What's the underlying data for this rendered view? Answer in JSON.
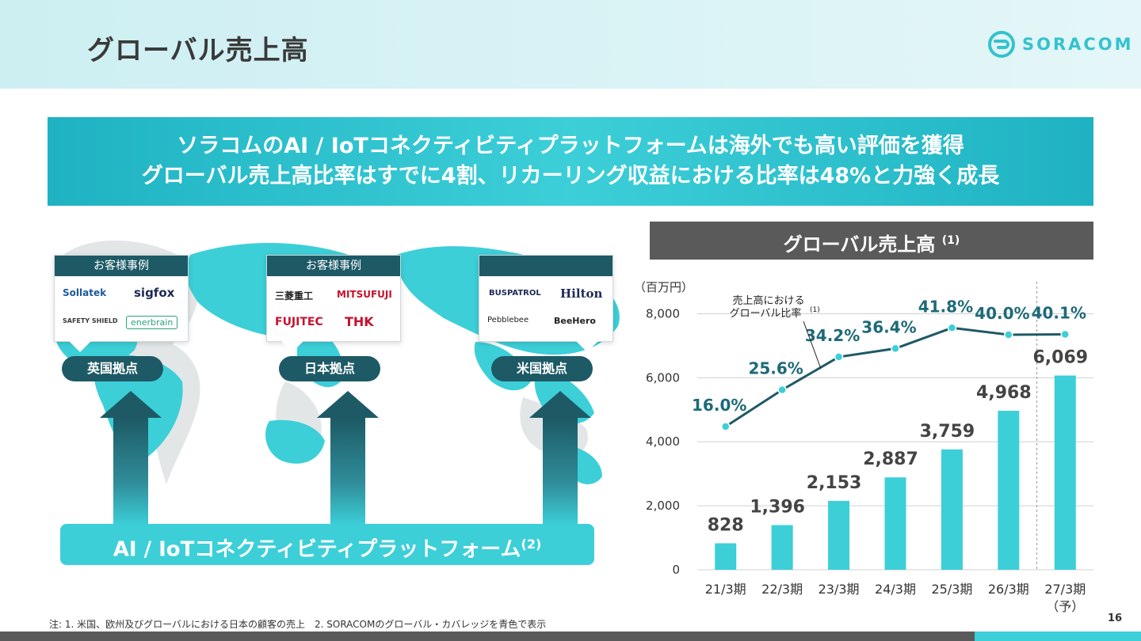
{
  "header": {
    "title": "グローバル売上高",
    "logo_text": "SORACOM"
  },
  "banner": {
    "line1": "ソラコムのAI / IoTコネクティビティプラットフォームは海外でも高い評価を獲得",
    "line2": "グローバル売上高比率はすでに4割、リカーリング収益における比率は48%と力強く成長"
  },
  "map": {
    "cases": [
      {
        "heading": "お客様事例",
        "brands": [
          "Sollatek",
          "sigfox",
          "SAFETY SHIELD",
          "enerbrain"
        ]
      },
      {
        "heading": "お客様事例",
        "brands": [
          "三菱重工",
          "MITSUFUJI",
          "FUJITEC",
          "THK"
        ]
      },
      {
        "heading": "",
        "brands": [
          "BUSPATROL",
          "Hilton",
          "Pebblebee",
          "BeeHero"
        ]
      }
    ],
    "bases": [
      "英国拠点",
      "日本拠点",
      "米国拠点"
    ],
    "platform_label": "AI / IoTコネクティビティプラットフォーム",
    "platform_note": "(2)"
  },
  "chart_header": {
    "title": "グローバル売上高",
    "note": "(1)"
  },
  "chart_data": {
    "type": "bar",
    "unit_label": "（百万円）",
    "categories": [
      "21/3期",
      "22/3期",
      "23/3期",
      "24/3期",
      "25/3期",
      "26/3期",
      "27/3期"
    ],
    "forecast_note": "（予）",
    "values": [
      828,
      1396,
      2153,
      2887,
      3759,
      4968,
      6069
    ],
    "value_labels": [
      "828",
      "1,396",
      "2,153",
      "2,887",
      "3,759",
      "4,968",
      "6,069"
    ],
    "ylim": [
      0,
      9000
    ],
    "yticks": [
      0,
      2000,
      4000,
      6000,
      8000
    ],
    "ytick_labels": [
      "0",
      "2,000",
      "4,000",
      "6,000",
      "8,000"
    ],
    "ratio_series": {
      "label_line1": "売上高における",
      "label_line2": "グローバル比率",
      "label_note": "(1)",
      "values": [
        16.0,
        25.6,
        34.2,
        36.4,
        41.8,
        40.0,
        40.1
      ],
      "value_labels": [
        "16.0%",
        "25.6%",
        "34.2%",
        "36.4%",
        "41.8%",
        "40.0%",
        "40.1%"
      ]
    },
    "colors": {
      "bar": "#3ccfd8",
      "line": "#1d5a66",
      "marker": "#3ccfd8",
      "grid": "#d0d0d0"
    }
  },
  "footnote": "注: 1. 米国、欧州及びグローバルにおける日本の顧客の売上　2. SORACOMのグローバル・カバレッジを青色で表示",
  "page_number": "16"
}
